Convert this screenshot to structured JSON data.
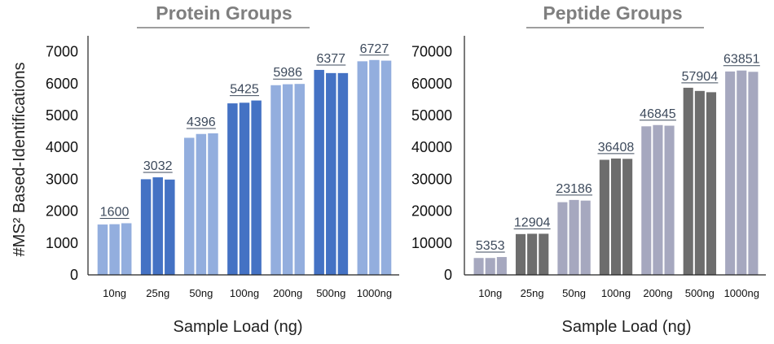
{
  "chart_data": [
    {
      "type": "bar",
      "title": "Protein Groups",
      "xlabel": "Sample Load (ng)",
      "ylabel": "#MS² Based-Identifications",
      "ylim": [
        0,
        7500
      ],
      "yticks": [
        "0",
        "1000",
        "2000",
        "3000",
        "4000",
        "5000",
        "6000",
        "7000"
      ],
      "ytick_values": [
        0,
        1000,
        2000,
        3000,
        4000,
        5000,
        6000,
        7000
      ],
      "categories": [
        "10ng",
        "25ng",
        "50ng",
        "100ng",
        "200ng",
        "500ng",
        "1000ng"
      ],
      "replicates": [
        [
          1580,
          1590,
          1620
        ],
        [
          3000,
          3060,
          2990
        ],
        [
          4300,
          4420,
          4440
        ],
        [
          5380,
          5400,
          5470
        ],
        [
          5950,
          5980,
          5990
        ],
        [
          6430,
          6330,
          6330
        ],
        [
          6700,
          6740,
          6720
        ]
      ],
      "mean_labels": [
        "1600",
        "3032",
        "4396",
        "5425",
        "5986",
        "6377",
        "6727"
      ],
      "bar_colors": [
        "#93aede",
        "#4472c4",
        "#93aede",
        "#4472c4",
        "#93aede",
        "#4472c4",
        "#93aede"
      ],
      "grid": false
    },
    {
      "type": "bar",
      "title": "Peptide Groups",
      "xlabel": "Sample Load (ng)",
      "ylabel": "",
      "ylim": [
        0,
        75000
      ],
      "yticks": [
        "0",
        "10000",
        "20000",
        "30000",
        "40000",
        "50000",
        "60000",
        "70000"
      ],
      "ytick_values": [
        0,
        10000,
        20000,
        30000,
        40000,
        50000,
        60000,
        70000
      ],
      "categories": [
        "10ng",
        "25ng",
        "50ng",
        "100ng",
        "200ng",
        "500ng",
        "1000ng"
      ],
      "replicates": [
        [
          5300,
          5300,
          5600
        ],
        [
          12800,
          12900,
          12900
        ],
        [
          22800,
          23500,
          23300
        ],
        [
          36100,
          36500,
          36400
        ],
        [
          46600,
          47000,
          46800
        ],
        [
          58700,
          57700,
          57300
        ],
        [
          63800,
          64100,
          63700
        ]
      ],
      "mean_labels": [
        "5353",
        "12904",
        "23186",
        "36408",
        "46845",
        "57904",
        "63851"
      ],
      "bar_colors": [
        "#a6a8bf",
        "#6d6d6d",
        "#a6a8bf",
        "#6d6d6d",
        "#a6a8bf",
        "#6d6d6d",
        "#a6a8bf"
      ],
      "grid": false
    }
  ]
}
